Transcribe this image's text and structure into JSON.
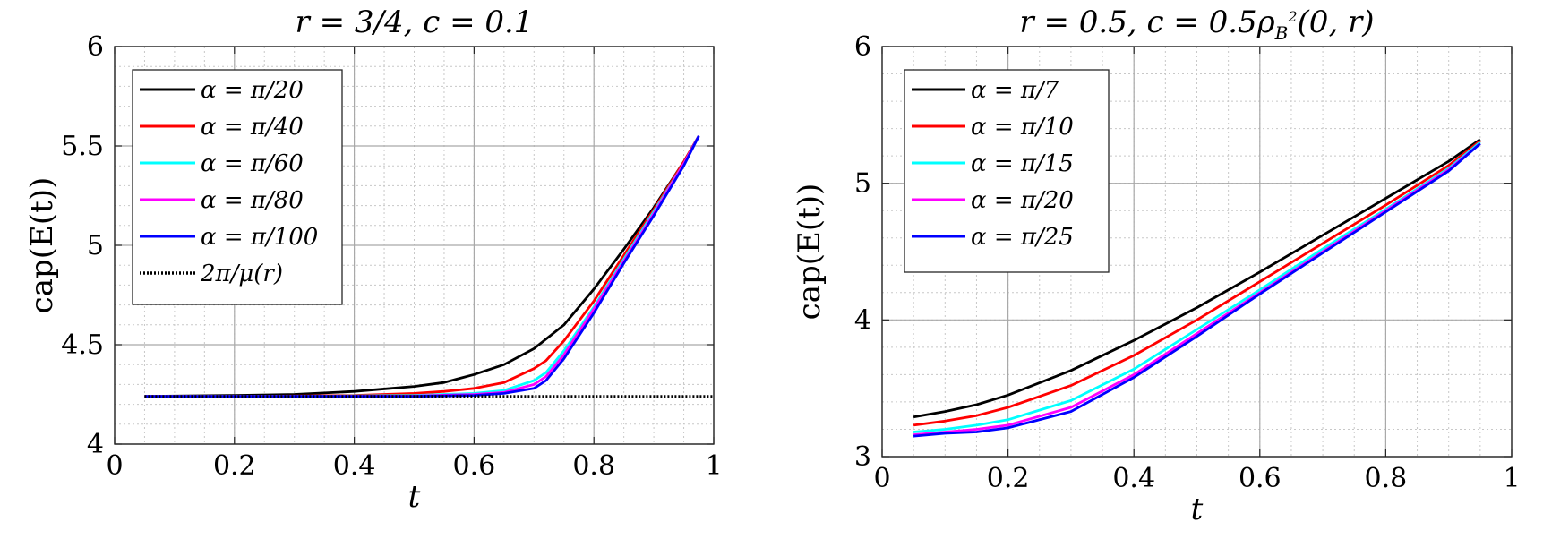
{
  "chart_data": [
    {
      "type": "line",
      "title": "r = 3/4,    c = 0.1",
      "xlabel": "t",
      "ylabel": "cap(E(t))",
      "xlim": [
        0,
        1
      ],
      "ylim": [
        4,
        6
      ],
      "xticks": [
        0,
        0.2,
        0.4,
        0.6,
        0.8,
        1
      ],
      "xtick_labels": [
        "0",
        "0.2",
        "0.4",
        "0.6",
        "0.8",
        "1"
      ],
      "yticks": [
        4,
        4.5,
        5,
        5.5,
        6
      ],
      "ytick_labels": [
        "4",
        "4.5",
        "5",
        "5.5",
        "6"
      ],
      "grid": true,
      "minor_grid": true,
      "legend_position": "top-left",
      "series": [
        {
          "name": "α = π/20",
          "color": "#000000",
          "style": "solid",
          "x": [
            0.05,
            0.2,
            0.3,
            0.4,
            0.5,
            0.55,
            0.6,
            0.65,
            0.7,
            0.75,
            0.8,
            0.85,
            0.9,
            0.95,
            0.975
          ],
          "y": [
            4.24,
            4.245,
            4.25,
            4.265,
            4.29,
            4.31,
            4.35,
            4.4,
            4.48,
            4.6,
            4.78,
            4.98,
            5.19,
            5.42,
            5.55
          ]
        },
        {
          "name": "α = π/40",
          "color": "#ff0000",
          "style": "solid",
          "x": [
            0.05,
            0.2,
            0.3,
            0.4,
            0.5,
            0.55,
            0.6,
            0.65,
            0.7,
            0.72,
            0.75,
            0.8,
            0.85,
            0.9,
            0.95,
            0.975
          ],
          "y": [
            4.24,
            4.24,
            4.242,
            4.245,
            4.255,
            4.265,
            4.28,
            4.31,
            4.38,
            4.42,
            4.52,
            4.72,
            4.95,
            5.18,
            5.42,
            5.55
          ]
        },
        {
          "name": "α = π/60",
          "color": "#00ffff",
          "style": "solid",
          "x": [
            0.05,
            0.3,
            0.5,
            0.6,
            0.65,
            0.7,
            0.72,
            0.75,
            0.8,
            0.85,
            0.9,
            0.95,
            0.975
          ],
          "y": [
            4.24,
            4.24,
            4.245,
            4.255,
            4.27,
            4.32,
            4.36,
            4.47,
            4.69,
            4.93,
            5.17,
            5.41,
            5.55
          ]
        },
        {
          "name": "α = π/80",
          "color": "#ff00ff",
          "style": "solid",
          "x": [
            0.05,
            0.3,
            0.5,
            0.6,
            0.65,
            0.7,
            0.72,
            0.75,
            0.8,
            0.85,
            0.9,
            0.95,
            0.975
          ],
          "y": [
            4.24,
            4.24,
            4.242,
            4.25,
            4.26,
            4.3,
            4.34,
            4.45,
            4.68,
            4.92,
            5.16,
            5.41,
            5.55
          ]
        },
        {
          "name": "α = π/100",
          "color": "#0000ff",
          "style": "solid",
          "x": [
            0.05,
            0.3,
            0.5,
            0.6,
            0.65,
            0.7,
            0.72,
            0.75,
            0.8,
            0.85,
            0.9,
            0.95,
            0.975
          ],
          "y": [
            4.24,
            4.24,
            4.24,
            4.245,
            4.255,
            4.28,
            4.32,
            4.43,
            4.66,
            4.91,
            5.15,
            5.4,
            5.55
          ]
        },
        {
          "name": "2π/μ(r)",
          "color": "#000000",
          "style": "dotted",
          "x": [
            0.05,
            1
          ],
          "y": [
            4.24,
            4.24
          ]
        }
      ]
    },
    {
      "type": "line",
      "title": "r = 0.5,    c = 0.5ρB²(0, r)",
      "title_main": "r = 0.5,    c = 0.5ρ",
      "title_sub": "B",
      "title_sup": "2",
      "title_tail": "(0, r)",
      "xlabel": "t",
      "ylabel": "cap(E(t))",
      "xlim": [
        0,
        1
      ],
      "ylim": [
        3,
        6
      ],
      "xticks": [
        0,
        0.2,
        0.4,
        0.6,
        0.8,
        1
      ],
      "xtick_labels": [
        "0",
        "0.2",
        "0.4",
        "0.6",
        "0.8",
        "1"
      ],
      "yticks": [
        3,
        4,
        5,
        6
      ],
      "ytick_labels": [
        "3",
        "4",
        "5",
        "6"
      ],
      "grid": true,
      "minor_grid": true,
      "legend_position": "top-left",
      "series": [
        {
          "name": "α = π/7",
          "color": "#000000",
          "style": "solid",
          "x": [
            0.05,
            0.1,
            0.15,
            0.2,
            0.3,
            0.4,
            0.5,
            0.6,
            0.7,
            0.8,
            0.9,
            0.95
          ],
          "y": [
            3.29,
            3.33,
            3.38,
            3.45,
            3.63,
            3.85,
            4.09,
            4.35,
            4.62,
            4.89,
            5.16,
            5.32
          ]
        },
        {
          "name": "α = π/10",
          "color": "#ff0000",
          "style": "solid",
          "x": [
            0.05,
            0.1,
            0.15,
            0.2,
            0.3,
            0.4,
            0.5,
            0.6,
            0.7,
            0.8,
            0.9,
            0.95
          ],
          "y": [
            3.23,
            3.26,
            3.3,
            3.36,
            3.52,
            3.74,
            4.0,
            4.28,
            4.56,
            4.84,
            5.13,
            5.31
          ]
        },
        {
          "name": "α = π/15",
          "color": "#00ffff",
          "style": "solid",
          "x": [
            0.05,
            0.1,
            0.15,
            0.2,
            0.3,
            0.4,
            0.5,
            0.6,
            0.7,
            0.8,
            0.9,
            0.95
          ],
          "y": [
            3.18,
            3.2,
            3.23,
            3.27,
            3.41,
            3.64,
            3.93,
            4.22,
            4.52,
            4.81,
            5.11,
            5.3
          ]
        },
        {
          "name": "α = π/20",
          "color": "#ff00ff",
          "style": "solid",
          "x": [
            0.05,
            0.1,
            0.15,
            0.2,
            0.3,
            0.4,
            0.5,
            0.6,
            0.7,
            0.8,
            0.9,
            0.95
          ],
          "y": [
            3.16,
            3.18,
            3.2,
            3.23,
            3.36,
            3.6,
            3.9,
            4.2,
            4.5,
            4.8,
            5.1,
            5.29
          ]
        },
        {
          "name": "α = π/25",
          "color": "#0000ff",
          "style": "solid",
          "x": [
            0.05,
            0.1,
            0.15,
            0.2,
            0.3,
            0.4,
            0.5,
            0.6,
            0.7,
            0.8,
            0.9,
            0.95
          ],
          "y": [
            3.15,
            3.17,
            3.18,
            3.21,
            3.33,
            3.58,
            3.88,
            4.19,
            4.49,
            4.79,
            5.09,
            5.29
          ]
        }
      ]
    }
  ]
}
